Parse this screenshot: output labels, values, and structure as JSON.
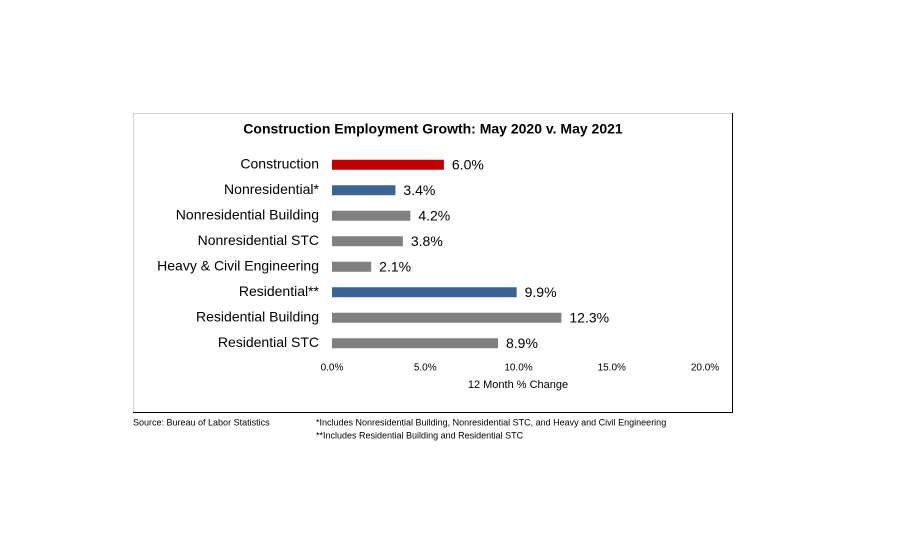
{
  "chart_data": {
    "type": "bar",
    "orientation": "horizontal",
    "title": "Construction Employment Growth: May 2020 v. May 2021",
    "categories": [
      "Construction",
      "Nonresidential*",
      "Nonresidential Building",
      "Nonresidential STC",
      "Heavy & Civil Engineering",
      "Residential**",
      "Residential Building",
      "Residential STC"
    ],
    "values": [
      6.0,
      3.4,
      4.2,
      3.8,
      2.1,
      9.9,
      12.3,
      8.9
    ],
    "value_labels": [
      "6.0%",
      "3.4%",
      "4.2%",
      "3.8%",
      "2.1%",
      "9.9%",
      "12.3%",
      "8.9%"
    ],
    "colors": [
      "#c00000",
      "#3b6494",
      "#808080",
      "#808080",
      "#808080",
      "#3b6494",
      "#808080",
      "#808080"
    ],
    "xlabel": "12 Month % Change",
    "xlim": [
      0,
      20
    ],
    "xticks": [
      {
        "value": 0,
        "label": "0.0%"
      },
      {
        "value": 5,
        "label": "5.0%"
      },
      {
        "value": 10,
        "label": "10.0%"
      },
      {
        "value": 15,
        "label": "15.0%"
      },
      {
        "value": 20,
        "label": "20.0%"
      }
    ],
    "grid": false,
    "source": "Source:  Bureau of Labor Statistics",
    "notes": [
      "*Includes Nonresidential Building, Nonresidential STC, and Heavy and Civil Engineering",
      "**Includes Residential Building and Residential STC"
    ]
  }
}
